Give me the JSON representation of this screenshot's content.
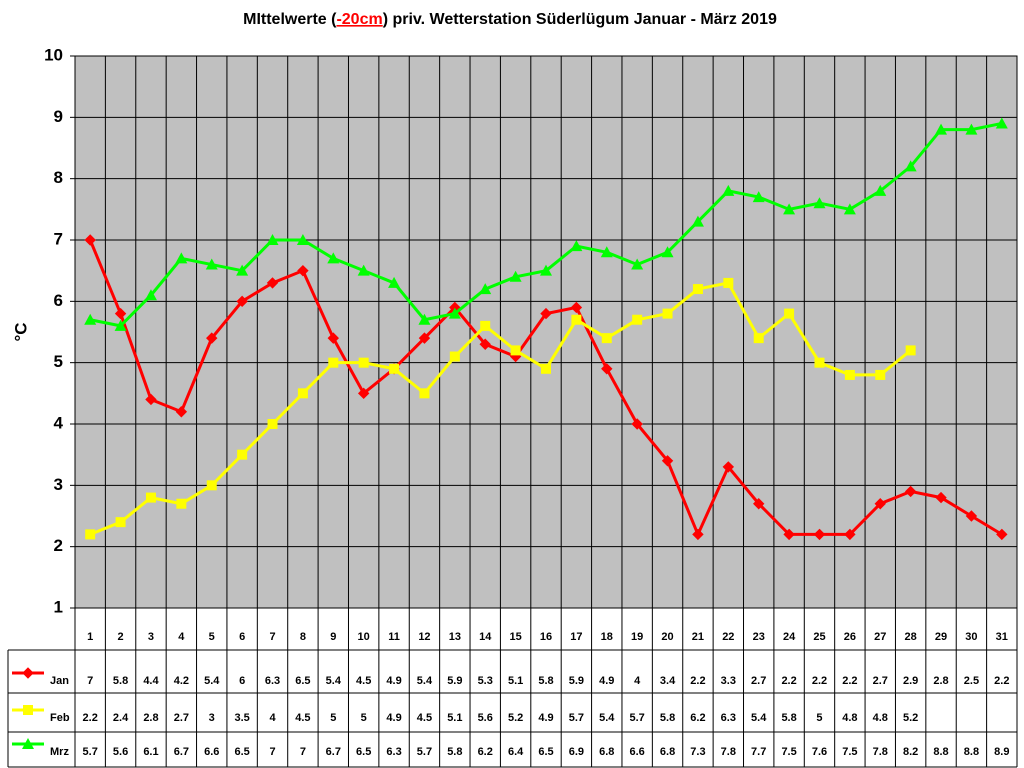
{
  "chart_data": {
    "type": "line",
    "title": {
      "before": "MIttelwerte (",
      "highlight": "-20cm",
      "after": ") priv. Wetterstation Süderlügum Januar - März 2019"
    },
    "y_label": "°C",
    "categories": [
      "1",
      "2",
      "3",
      "4",
      "5",
      "6",
      "7",
      "8",
      "9",
      "10",
      "11",
      "12",
      "13",
      "14",
      "15",
      "16",
      "17",
      "18",
      "19",
      "20",
      "21",
      "22",
      "23",
      "24",
      "25",
      "26",
      "27",
      "28",
      "29",
      "30",
      "31"
    ],
    "series": [
      {
        "name": "Jan",
        "color": "#ff0000",
        "marker": "diamond",
        "values": [
          7,
          5.8,
          4.4,
          4.2,
          5.4,
          6,
          6.3,
          6.5,
          5.4,
          4.5,
          4.9,
          5.4,
          5.9,
          5.3,
          5.1,
          5.8,
          5.9,
          4.9,
          4,
          3.4,
          2.2,
          3.3,
          2.7,
          2.2,
          2.2,
          2.2,
          2.7,
          2.9,
          2.8,
          2.5,
          2.2
        ]
      },
      {
        "name": "Feb",
        "color": "#ffff00",
        "marker": "square",
        "values": [
          2.2,
          2.4,
          2.8,
          2.7,
          3,
          3.5,
          4,
          4.5,
          5,
          5,
          4.9,
          4.5,
          5.1,
          5.6,
          5.2,
          4.9,
          5.7,
          5.4,
          5.7,
          5.8,
          6.2,
          6.3,
          5.4,
          5.8,
          5,
          4.8,
          4.8,
          5.2,
          null,
          null,
          null
        ]
      },
      {
        "name": "Mrz",
        "color": "#00ff00",
        "marker": "triangle",
        "values": [
          5.7,
          5.6,
          6.1,
          6.7,
          6.6,
          6.5,
          7,
          7,
          6.7,
          6.5,
          6.3,
          5.7,
          5.8,
          6.2,
          6.4,
          6.5,
          6.9,
          6.8,
          6.6,
          6.8,
          7.3,
          7.8,
          7.7,
          7.5,
          7.6,
          7.5,
          7.8,
          8.2,
          8.8,
          8.8,
          8.9
        ]
      }
    ],
    "ylim": [
      1,
      10
    ],
    "yticks": [
      1,
      2,
      3,
      4,
      5,
      6,
      7,
      8,
      9,
      10
    ],
    "grid": true,
    "plot_background": "#c0c0c0"
  }
}
